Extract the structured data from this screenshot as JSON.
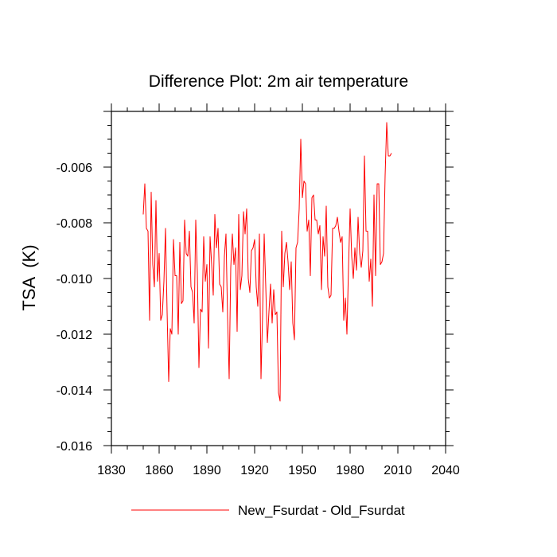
{
  "chart_data": {
    "type": "line",
    "title": "Difference Plot: 2m air temperature",
    "xlabel": "",
    "ylabel": "TSA  (K)",
    "xlim": [
      1830,
      2040
    ],
    "ylim": [
      -0.016,
      -0.004
    ],
    "xticks": [
      1830,
      1860,
      1890,
      1920,
      1950,
      1980,
      2010,
      2040
    ],
    "yticks": [
      -0.016,
      -0.014,
      -0.012,
      -0.01,
      -0.008,
      -0.006
    ],
    "ytick_labels": [
      "-0.016",
      "-0.014",
      "-0.012",
      "-0.010",
      "-0.008",
      "-0.006"
    ],
    "legend": {
      "position": "bottom-center"
    },
    "series": [
      {
        "name": "New_Fsurdat - Old_Fsurdat",
        "color": "#ff0000",
        "x_start": 1850,
        "x_step": 1,
        "values": [
          -0.0077,
          -0.0066,
          -0.0082,
          -0.0083,
          -0.0115,
          -0.0069,
          -0.0095,
          -0.0103,
          -0.0072,
          -0.0101,
          -0.0091,
          -0.0115,
          -0.0113,
          -0.0101,
          -0.0082,
          -0.0112,
          -0.0137,
          -0.0118,
          -0.012,
          -0.0086,
          -0.0099,
          -0.0099,
          -0.012,
          -0.0087,
          -0.0109,
          -0.0108,
          -0.0079,
          -0.0091,
          -0.0092,
          -0.0083,
          -0.0103,
          -0.0105,
          -0.0116,
          -0.0079,
          -0.0098,
          -0.0132,
          -0.0111,
          -0.0112,
          -0.0085,
          -0.0101,
          -0.0095,
          -0.0125,
          -0.0085,
          -0.0095,
          -0.0106,
          -0.0077,
          -0.0089,
          -0.0082,
          -0.0102,
          -0.0103,
          -0.0112,
          -0.0092,
          -0.0084,
          -0.0114,
          -0.0136,
          -0.0096,
          -0.0084,
          -0.0095,
          -0.0089,
          -0.0119,
          -0.0077,
          -0.0104,
          -0.0099,
          -0.0076,
          -0.0084,
          -0.0075,
          -0.01,
          -0.0105,
          -0.009,
          -0.0089,
          -0.0086,
          -0.0103,
          -0.011,
          -0.0084,
          -0.0136,
          -0.0113,
          -0.0084,
          -0.0103,
          -0.0123,
          -0.0112,
          -0.0102,
          -0.0116,
          -0.0104,
          -0.0113,
          -0.0112,
          -0.0141,
          -0.0144,
          -0.0083,
          -0.0103,
          -0.0091,
          -0.0087,
          -0.0094,
          -0.0104,
          -0.0094,
          -0.0116,
          -0.0122,
          -0.0089,
          -0.0087,
          -0.0075,
          -0.005,
          -0.0071,
          -0.0065,
          -0.0066,
          -0.0083,
          -0.0079,
          -0.0099,
          -0.0071,
          -0.007,
          -0.0079,
          -0.0079,
          -0.0084,
          -0.0081,
          -0.0104,
          -0.0085,
          -0.0092,
          -0.0074,
          -0.0103,
          -0.0107,
          -0.0106,
          -0.0082,
          -0.0082,
          -0.0081,
          -0.0078,
          -0.0083,
          -0.0087,
          -0.0085,
          -0.0115,
          -0.0107,
          -0.012,
          -0.0096,
          -0.0075,
          -0.0092,
          -0.01,
          -0.0089,
          -0.0097,
          -0.0078,
          -0.0091,
          -0.0096,
          -0.009,
          -0.0056,
          -0.0083,
          -0.0083,
          -0.0101,
          -0.0093,
          -0.011,
          -0.007,
          -0.0099,
          -0.0066,
          -0.0066,
          -0.0095,
          -0.0094,
          -0.0091,
          -0.0063,
          -0.0044,
          -0.0056,
          -0.0056,
          -0.0055
        ]
      }
    ]
  }
}
